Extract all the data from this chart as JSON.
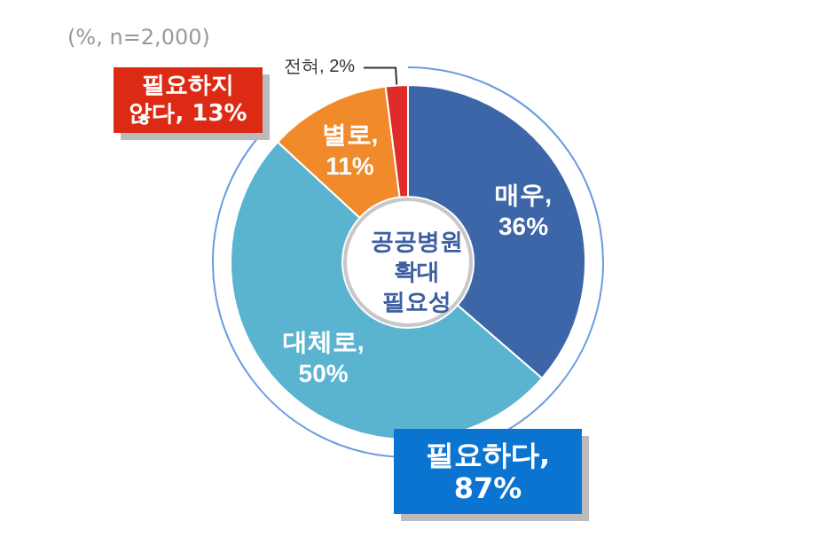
{
  "chart_data": {
    "type": "donut",
    "title": "공공병원\n확대\n필요성",
    "categories": [
      "매우",
      "대체로",
      "별로",
      "전혀"
    ],
    "values": [
      36,
      50,
      11,
      2
    ],
    "colors": [
      "#3d66a8",
      "#5ab4d0",
      "#f08a2b",
      "#e02b2b"
    ],
    "value_labels": [
      ",\n36%",
      ",\n50%",
      ",\n11%",
      ", 2%"
    ],
    "annotations": [
      "(%, n=2,000)",
      "필요하지\n않다, 13%",
      "필요하다,\n87%"
    ],
    "legend": false
  }
}
